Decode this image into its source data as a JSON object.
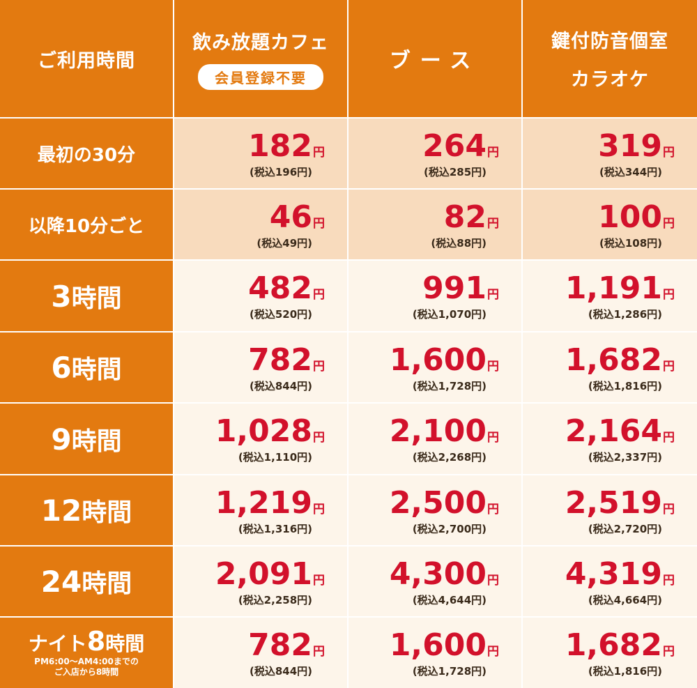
{
  "header": {
    "time_label": "ご利用時間",
    "plans": [
      {
        "title": "飲み放題カフェ",
        "badge": "会員登録不要"
      },
      {
        "title": "ブース"
      },
      {
        "title": "鍵付防音個室",
        "subtitle": "カラオケ"
      }
    ]
  },
  "currency": "円",
  "rows": [
    {
      "label": "最初の30分",
      "prices": [
        {
          "price": "182",
          "tax": "(税込196円)"
        },
        {
          "price": "264",
          "tax": "(税込285円)"
        },
        {
          "price": "319",
          "tax": "(税込344円)"
        }
      ]
    },
    {
      "label": "以降10分ごと",
      "prices": [
        {
          "price": "46",
          "tax": "(税込49円)"
        },
        {
          "price": "82",
          "tax": "(税込88円)"
        },
        {
          "price": "100",
          "tax": "(税込108円)"
        }
      ]
    },
    {
      "label_num": "3",
      "label_unit": "時間",
      "prices": [
        {
          "price": "482",
          "tax": "(税込520円)"
        },
        {
          "price": "991",
          "tax": "(税込1,070円)"
        },
        {
          "price": "1,191",
          "tax": "(税込1,286円)"
        }
      ]
    },
    {
      "label_num": "6",
      "label_unit": "時間",
      "prices": [
        {
          "price": "782",
          "tax": "(税込844円)"
        },
        {
          "price": "1,600",
          "tax": "(税込1,728円)"
        },
        {
          "price": "1,682",
          "tax": "(税込1,816円)"
        }
      ]
    },
    {
      "label_num": "9",
      "label_unit": "時間",
      "prices": [
        {
          "price": "1,028",
          "tax": "(税込1,110円)"
        },
        {
          "price": "2,100",
          "tax": "(税込2,268円)"
        },
        {
          "price": "2,164",
          "tax": "(税込2,337円)"
        }
      ]
    },
    {
      "label_num": "12",
      "label_unit": "時間",
      "prices": [
        {
          "price": "1,219",
          "tax": "(税込1,316円)"
        },
        {
          "price": "2,500",
          "tax": "(税込2,700円)"
        },
        {
          "price": "2,519",
          "tax": "(税込2,720円)"
        }
      ]
    },
    {
      "label_num": "24",
      "label_unit": "時間",
      "prices": [
        {
          "price": "2,091",
          "tax": "(税込2,258円)"
        },
        {
          "price": "4,300",
          "tax": "(税込4,644円)"
        },
        {
          "price": "4,319",
          "tax": "(税込4,664円)"
        }
      ]
    },
    {
      "label_pre": "ナイト",
      "label_num": "8",
      "label_unit": "時間",
      "note_1": "PM6:00～AM4:00までの",
      "note_2": "ご入店から8時間",
      "prices": [
        {
          "price": "782",
          "tax": "(税込844円)"
        },
        {
          "price": "1,600",
          "tax": "(税込1,728円)"
        },
        {
          "price": "1,682",
          "tax": "(税込1,816円)"
        }
      ]
    }
  ],
  "colors": {
    "header_orange": "#e37a10",
    "light_peach": "#f8dbbd",
    "pale_cream": "#fdf5ea",
    "price_red": "#d2112b"
  }
}
